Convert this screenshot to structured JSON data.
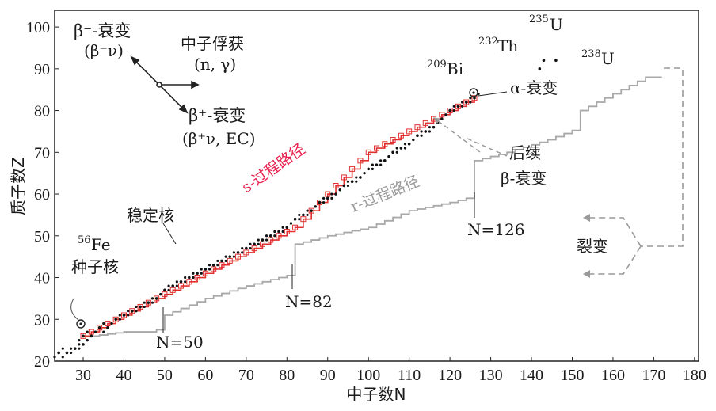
{
  "chart_data": {
    "type": "scatter",
    "title": "",
    "xlabel": "中子数N",
    "ylabel": "质子数Z",
    "xlim": [
      23,
      181
    ],
    "ylim": [
      20,
      104
    ],
    "xticks": [
      "30",
      "40",
      "50",
      "60",
      "70",
      "80",
      "90",
      "100",
      "110",
      "120",
      "130",
      "140",
      "150",
      "160",
      "170",
      "180"
    ],
    "yticks": [
      "20",
      "30",
      "40",
      "50",
      "60",
      "70",
      "80",
      "90",
      "100"
    ],
    "series": [
      {
        "name": "s-过程路径",
        "color": "#e0302f",
        "points": [
          [
            30,
            26
          ],
          [
            32,
            27
          ],
          [
            34,
            28
          ],
          [
            36,
            29
          ],
          [
            38,
            30
          ],
          [
            40,
            31
          ],
          [
            42,
            32
          ],
          [
            44,
            33
          ],
          [
            46,
            34
          ],
          [
            48,
            35
          ],
          [
            50,
            36
          ],
          [
            52,
            37
          ],
          [
            54,
            38
          ],
          [
            56,
            39
          ],
          [
            58,
            40
          ],
          [
            60,
            41
          ],
          [
            62,
            42
          ],
          [
            64,
            43
          ],
          [
            66,
            44
          ],
          [
            68,
            45
          ],
          [
            70,
            46
          ],
          [
            72,
            47
          ],
          [
            74,
            48
          ],
          [
            76,
            49
          ],
          [
            78,
            50
          ],
          [
            80,
            51
          ],
          [
            82,
            52
          ],
          [
            84,
            54
          ],
          [
            86,
            56
          ],
          [
            88,
            58
          ],
          [
            90,
            60
          ],
          [
            92,
            62
          ],
          [
            94,
            64
          ],
          [
            96,
            66
          ],
          [
            98,
            68
          ],
          [
            100,
            70
          ],
          [
            102,
            71
          ],
          [
            104,
            72
          ],
          [
            106,
            73
          ],
          [
            108,
            74
          ],
          [
            110,
            75
          ],
          [
            112,
            76
          ],
          [
            114,
            77
          ],
          [
            116,
            78
          ],
          [
            118,
            79
          ],
          [
            120,
            80
          ],
          [
            122,
            81
          ],
          [
            124,
            82
          ],
          [
            126,
            83
          ]
        ]
      },
      {
        "name": "r-过程路径",
        "color": "#a8a8a8",
        "points": [
          [
            32,
            26
          ],
          [
            40,
            27
          ],
          [
            46,
            27
          ],
          [
            50,
            28
          ],
          [
            50,
            31
          ],
          [
            60,
            35
          ],
          [
            70,
            38
          ],
          [
            82,
            41
          ],
          [
            82,
            48
          ],
          [
            90,
            50
          ],
          [
            100,
            52
          ],
          [
            110,
            56
          ],
          [
            120,
            58
          ],
          [
            124,
            59
          ],
          [
            126,
            59
          ],
          [
            126,
            68
          ],
          [
            134,
            70
          ],
          [
            144,
            73
          ],
          [
            152,
            76
          ],
          [
            152,
            80
          ],
          [
            160,
            84
          ],
          [
            168,
            88
          ],
          [
            172,
            88
          ]
        ]
      },
      {
        "name": "稳定核",
        "color": "#111111",
        "points": [
          [
            24,
            22
          ],
          [
            26,
            22
          ],
          [
            28,
            23
          ],
          [
            30,
            24
          ],
          [
            30,
            26
          ],
          [
            32,
            26
          ],
          [
            34,
            28
          ],
          [
            36,
            28
          ],
          [
            38,
            30
          ],
          [
            40,
            31
          ],
          [
            42,
            32
          ],
          [
            44,
            33
          ],
          [
            46,
            34
          ],
          [
            48,
            35
          ],
          [
            50,
            37
          ],
          [
            52,
            38
          ],
          [
            54,
            39
          ],
          [
            56,
            40
          ],
          [
            58,
            41
          ],
          [
            60,
            42
          ],
          [
            62,
            43
          ],
          [
            64,
            44
          ],
          [
            66,
            45
          ],
          [
            68,
            46
          ],
          [
            70,
            47
          ],
          [
            72,
            48
          ],
          [
            74,
            49
          ],
          [
            76,
            50
          ],
          [
            78,
            51
          ],
          [
            80,
            52
          ],
          [
            82,
            54
          ],
          [
            84,
            55
          ],
          [
            86,
            56
          ],
          [
            88,
            58
          ],
          [
            90,
            59
          ],
          [
            92,
            60
          ],
          [
            94,
            62
          ],
          [
            96,
            63
          ],
          [
            98,
            64
          ],
          [
            100,
            66
          ],
          [
            102,
            67
          ],
          [
            104,
            68
          ],
          [
            106,
            70
          ],
          [
            108,
            71
          ],
          [
            110,
            72
          ],
          [
            112,
            74
          ],
          [
            114,
            75
          ],
          [
            116,
            76
          ],
          [
            118,
            78
          ],
          [
            120,
            80
          ],
          [
            122,
            81
          ],
          [
            124,
            82
          ],
          [
            126,
            83
          ],
          [
            142,
            90
          ],
          [
            143,
            92
          ],
          [
            146,
            92
          ]
        ]
      }
    ],
    "annotations": [
      {
        "text": "β⁻-衰变",
        "x": 36,
        "y": 98
      },
      {
        "text": "(β⁻ν)",
        "x": 36,
        "y": 93
      },
      {
        "text": "中子俘获",
        "x": 64,
        "y": 95
      },
      {
        "text": "(n, γ)",
        "x": 64,
        "y": 90
      },
      {
        "text": "β⁺-衰变",
        "x": 62,
        "y": 77
      },
      {
        "text": "(β⁺ν, EC)",
        "x": 62,
        "y": 72
      },
      {
        "text": "s-过程路径",
        "x": 78,
        "y": 64
      },
      {
        "text": "r-过程路径",
        "x": 98,
        "y": 56
      },
      {
        "text": "稳定核",
        "x": 46,
        "y": 50
      },
      {
        "text": "56",
        "x": 25,
        "y": 45
      },
      {
        "text": "Fe",
        "x": 28,
        "y": 44
      },
      {
        "text": "种子核",
        "x": 27,
        "y": 39
      },
      {
        "text": "209",
        "x": 117,
        "y": 88
      },
      {
        "text": "Bi",
        "x": 122,
        "y": 87
      },
      {
        "text": "α-衰变",
        "x": 137,
        "y": 83
      },
      {
        "text": "232",
        "x": 131,
        "y": 95
      },
      {
        "text": "Th",
        "x": 136,
        "y": 94
      },
      {
        "text": "235",
        "x": 139,
        "y": 101
      },
      {
        "text": "U",
        "x": 143,
        "y": 100
      },
      {
        "text": "238",
        "x": 149,
        "y": 92
      },
      {
        "text": "U",
        "x": 153,
        "y": 91
      },
      {
        "text": "后续",
        "x": 139,
        "y": 68
      },
      {
        "text": "β-衰变",
        "x": 139,
        "y": 63
      },
      {
        "text": "N=126",
        "x": 122,
        "y": 48
      },
      {
        "text": "N=82",
        "x": 79,
        "y": 29
      },
      {
        "text": "N=50",
        "x": 48,
        "y": 22
      },
      {
        "text": "裂变",
        "x": 161,
        "y": 45
      }
    ]
  }
}
